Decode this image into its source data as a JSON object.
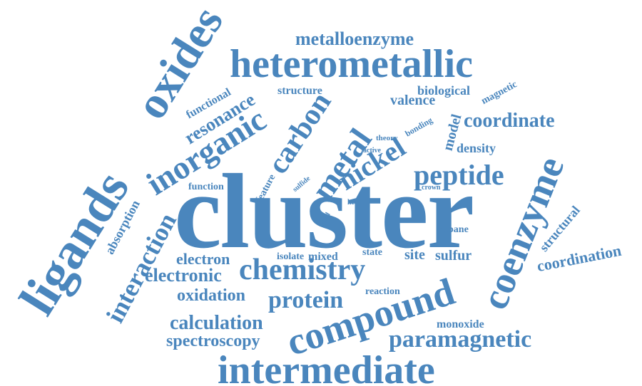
{
  "words": {
    "cluster": "cluster",
    "ligands": "ligands",
    "oxides": "oxides",
    "heterometallic": "heterometallic",
    "intermediate": "intermediate",
    "compound": "compound",
    "coenzyme": "coenzyme",
    "chemistry": "chemistry",
    "inorganic": "inorganic",
    "metal": "metal",
    "carbon": "carbon",
    "nickel": "nickel",
    "peptide": "peptide",
    "protein": "protein",
    "paramagnetic": "paramagnetic",
    "interaction": "interaction",
    "metalloenzyme": "metalloenzyme",
    "resonance": "resonance",
    "coordinate": "coordinate",
    "coordination": "coordination",
    "calculation": "calculation",
    "spectroscopy": "spectroscopy",
    "electronic": "electronic",
    "oxidation": "oxidation",
    "electron": "electron",
    "absorption": "absorption",
    "structural": "structural",
    "valence": "valence",
    "model": "model",
    "sulfur": "sulfur",
    "site": "site",
    "mixed": "mixed",
    "density": "density",
    "monoxide": "monoxide",
    "biological": "biological",
    "structure": "structure",
    "functional": "functional",
    "magnetic": "magnetic",
    "function": "function",
    "feature": "feature",
    "bonding": "bonding",
    "theory": "theory",
    "active": "active",
    "sulfide": "sulfide",
    "crown": "crown",
    "kcal": "kcal",
    "bond": "bond",
    "cubane": "cubane",
    "isolate": "isolate",
    "state": "state",
    "reaction": "reaction"
  },
  "colors": {
    "word": "#4a86bd",
    "background": "#ffffff"
  }
}
